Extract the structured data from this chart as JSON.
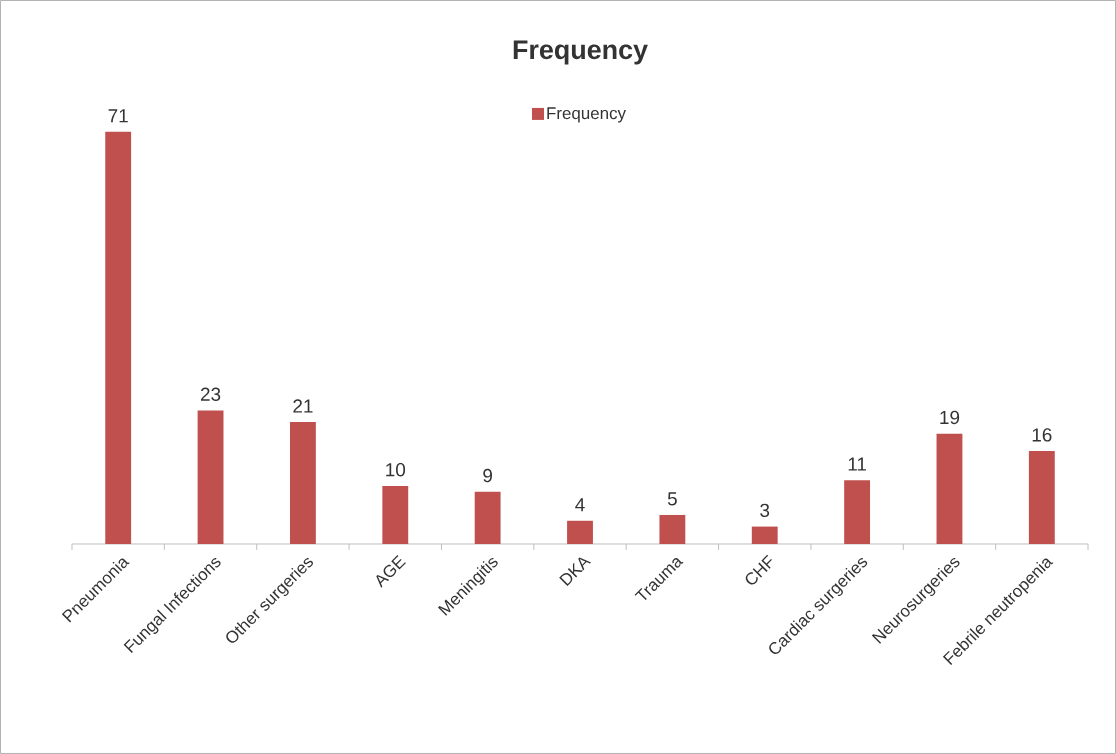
{
  "chart_data": {
    "type": "bar",
    "title": "Frequency",
    "categories": [
      "Pneumonia",
      "Fungal Infections",
      "Other surgeries",
      "AGE",
      "Meningitis",
      "DKA",
      "Trauma",
      "CHF",
      "Cardiac surgeries",
      "Neurosurgeries",
      "Febrile neutropenia"
    ],
    "series": [
      {
        "name": "Frequency",
        "color": "#c0504d",
        "values": [
          71,
          23,
          21,
          10,
          9,
          4,
          5,
          3,
          11,
          19,
          16
        ]
      }
    ],
    "data_labels": true,
    "legend": "top"
  }
}
